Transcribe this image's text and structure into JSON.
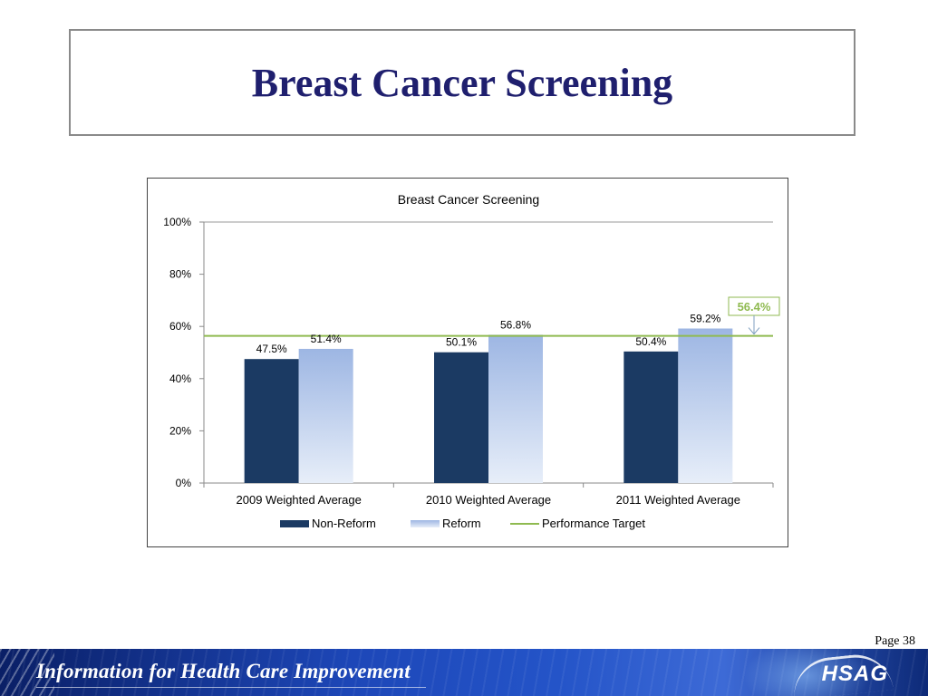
{
  "slide": {
    "title": "Breast Cancer Screening",
    "page_label": "Page 38"
  },
  "footer": {
    "tagline": "Information for Health Care Improvement",
    "logo_text": "HSAG"
  },
  "colors": {
    "non_reform": "#1b3a63",
    "reform_top": "#9db6e3",
    "reform_bottom": "#e7eef9",
    "target": "#8fba50",
    "title": "#1f1f6e"
  },
  "chart_data": {
    "type": "bar",
    "title": "Breast Cancer Screening",
    "categories": [
      "2009 Weighted Average",
      "2010 Weighted Average",
      "2011 Weighted Average"
    ],
    "series": [
      {
        "name": "Non-Reform",
        "values": [
          47.5,
          50.1,
          50.4
        ],
        "labels": [
          "47.5%",
          "50.1%",
          "50.4%"
        ]
      },
      {
        "name": "Reform",
        "values": [
          51.4,
          56.8,
          59.2
        ],
        "labels": [
          "51.4%",
          "56.8%",
          "59.2%"
        ]
      }
    ],
    "target": {
      "name": "Performance Target",
      "value": 56.4,
      "label": "56.4%"
    },
    "ylim": [
      0,
      100
    ],
    "yticks": [
      0,
      20,
      40,
      60,
      80,
      100
    ],
    "ytick_labels": [
      "0%",
      "20%",
      "40%",
      "60%",
      "80%",
      "100%"
    ],
    "xlabel": "",
    "ylabel": "",
    "legend_position": "bottom",
    "grid": "major-y at top only"
  }
}
